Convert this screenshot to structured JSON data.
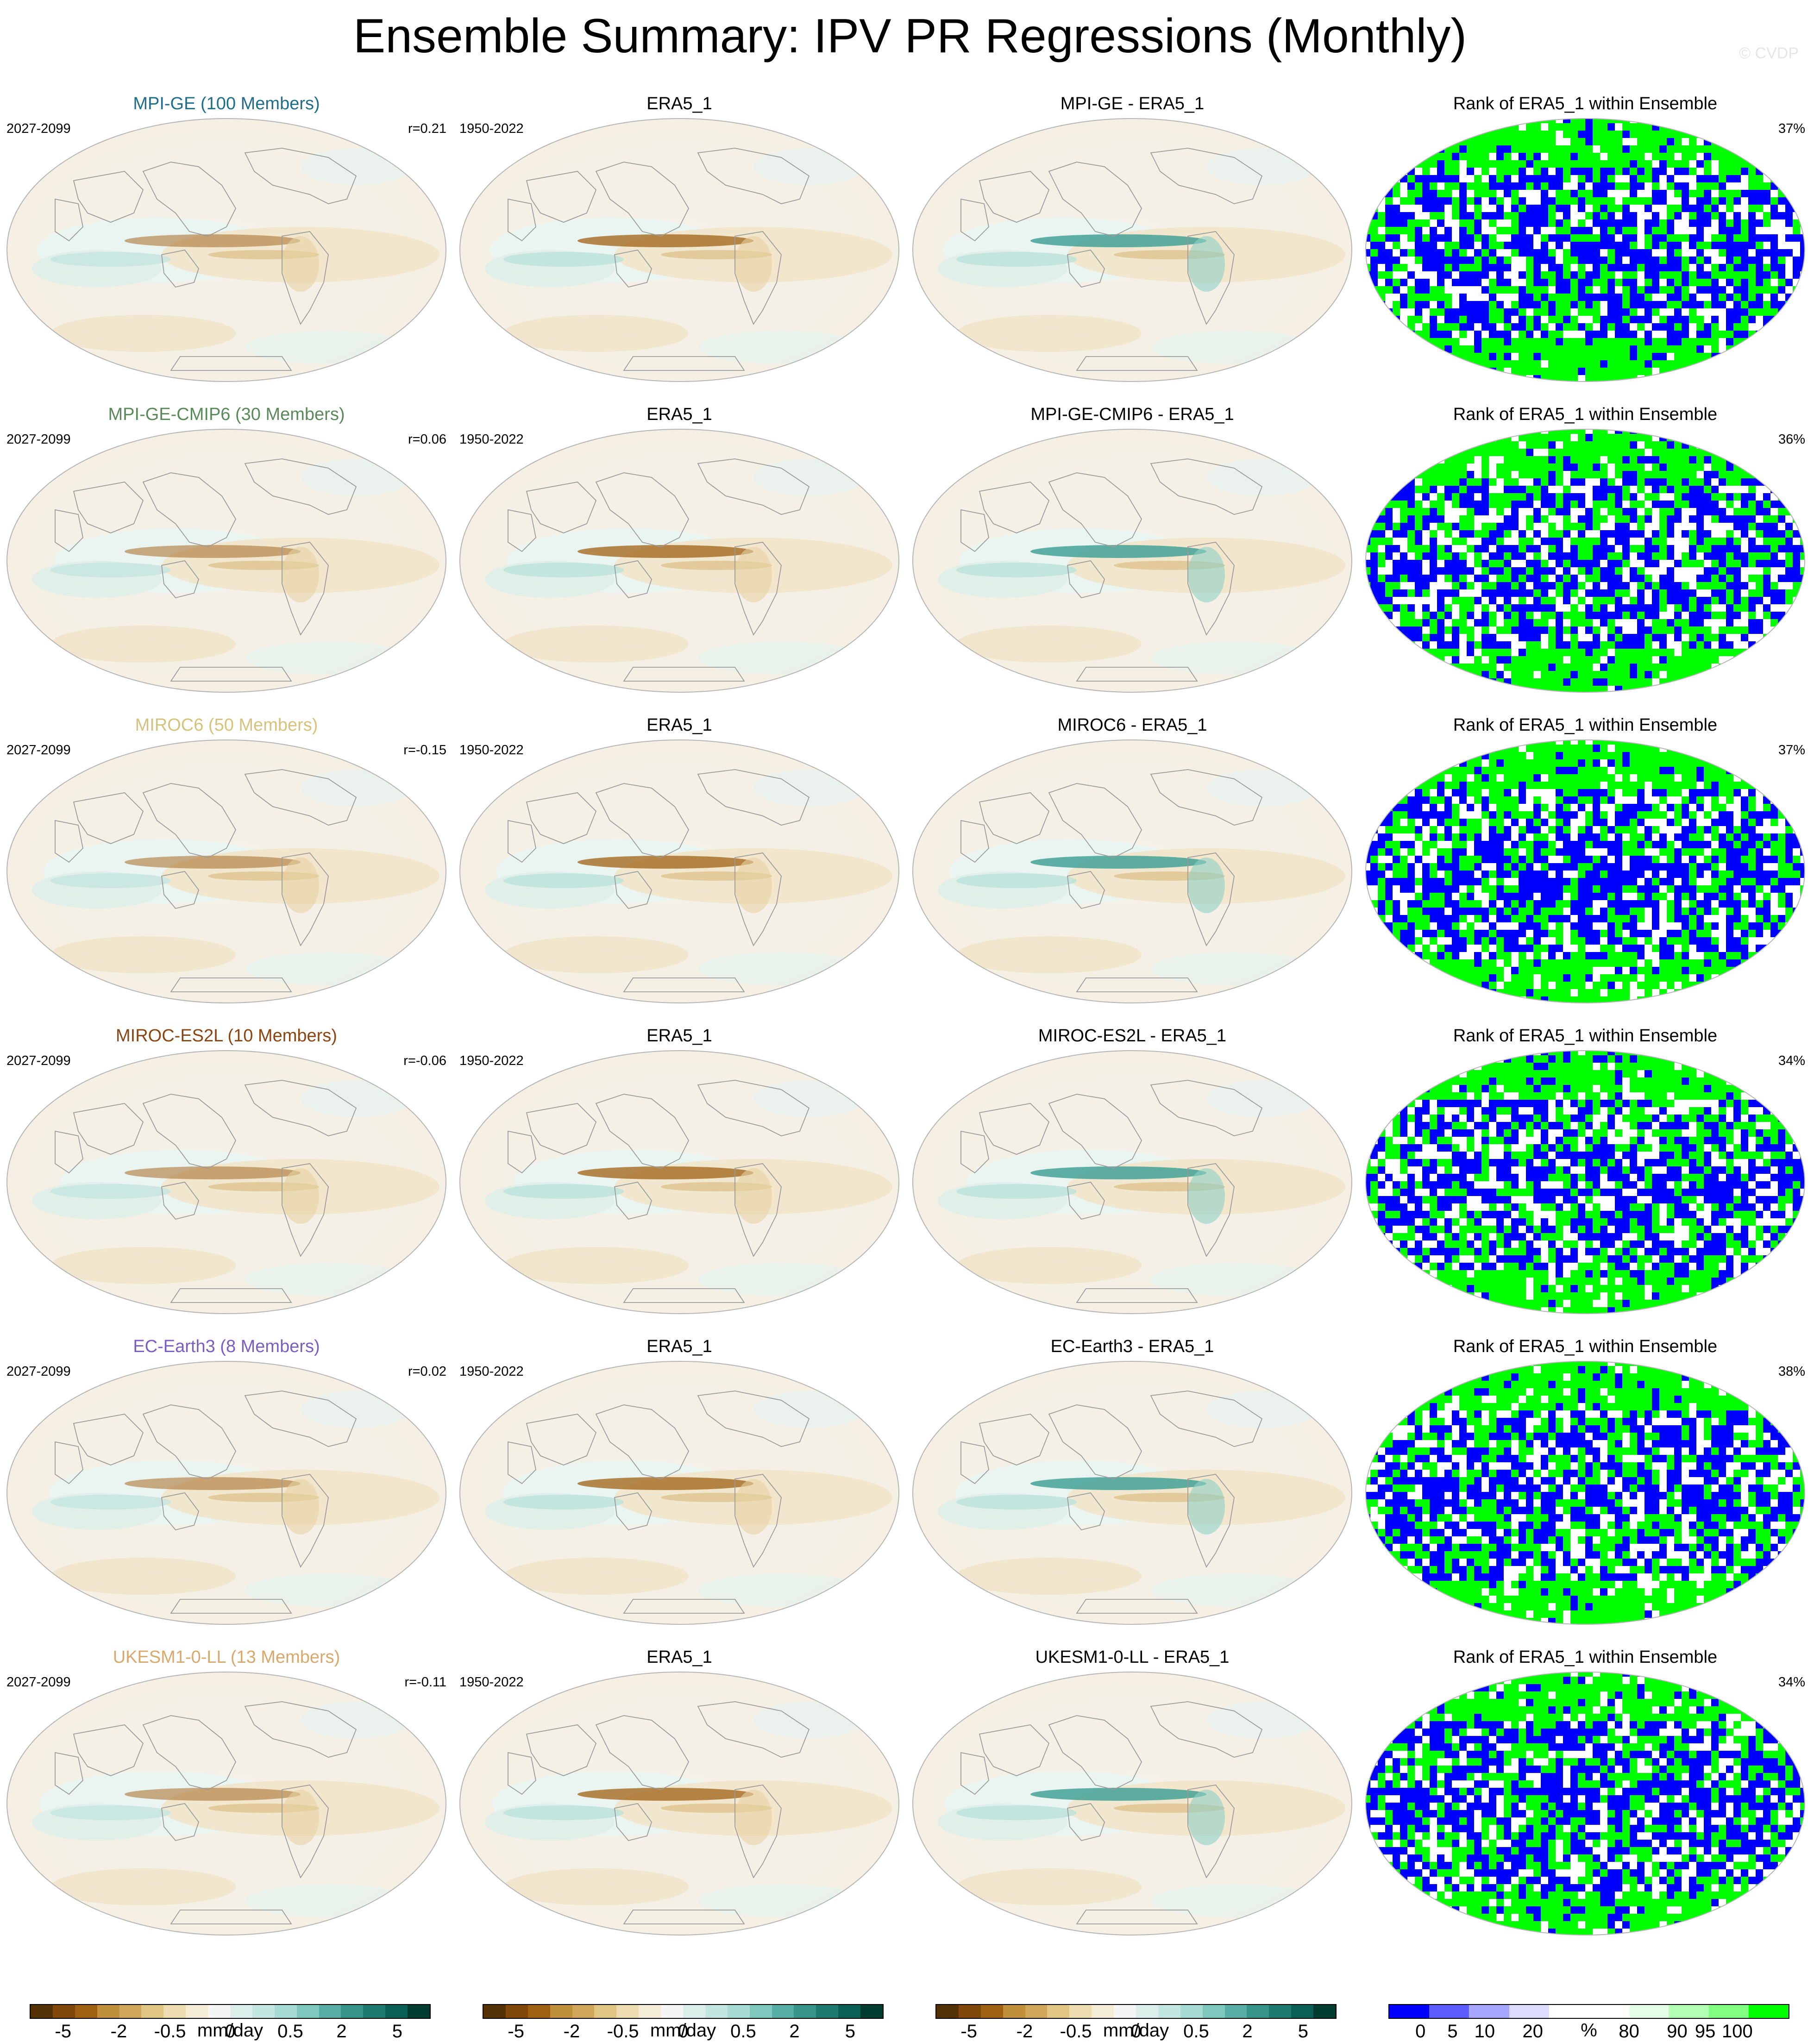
{
  "title": "Ensemble Summary: IPV PR Regressions (Monthly)",
  "watermark": "© CVDP",
  "rows": [
    {
      "model": "MPI-GE (100 Members)",
      "model_color": "#1f6e8c",
      "model_period": "2027-2099",
      "r": "r=0.21",
      "obs": "ERA5_1",
      "obs_period": "1950-2022",
      "diff": "MPI-GE - ERA5_1",
      "rank_title": "Rank of ERA5_1 within Ensemble",
      "rank_pct": "37%"
    },
    {
      "model": "MPI-GE-CMIP6 (30 Members)",
      "model_color": "#5a8a5a",
      "model_period": "2027-2099",
      "r": "r=0.06",
      "obs": "ERA5_1",
      "obs_period": "1950-2022",
      "diff": "MPI-GE-CMIP6 - ERA5_1",
      "rank_title": "Rank of ERA5_1 within Ensemble",
      "rank_pct": "36%"
    },
    {
      "model": "MIROC6 (50 Members)",
      "model_color": "#d6c27a",
      "model_period": "2027-2099",
      "r": "r=-0.15",
      "obs": "ERA5_1",
      "obs_period": "1950-2022",
      "diff": "MIROC6 - ERA5_1",
      "rank_title": "Rank of ERA5_1 within Ensemble",
      "rank_pct": "37%"
    },
    {
      "model": "MIROC-ES2L (10 Members)",
      "model_color": "#8b4513",
      "model_period": "2027-2099",
      "r": "r=-0.06",
      "obs": "ERA5_1",
      "obs_period": "1950-2022",
      "diff": "MIROC-ES2L - ERA5_1",
      "rank_title": "Rank of ERA5_1 within Ensemble",
      "rank_pct": "34%"
    },
    {
      "model": "EC-Earth3 (8 Members)",
      "model_color": "#7b5ec4",
      "model_period": "2027-2099",
      "r": "r=0.02",
      "obs": "ERA5_1",
      "obs_period": "1950-2022",
      "diff": "EC-Earth3 - ERA5_1",
      "rank_title": "Rank of ERA5_1 within Ensemble",
      "rank_pct": "38%"
    },
    {
      "model": "UKESM1-0-LL (13 Members)",
      "model_color": "#d9a86c",
      "model_period": "2027-2099",
      "r": "r=-0.11",
      "obs": "ERA5_1",
      "obs_period": "1950-2022",
      "diff": "UKESM1-0-LL - ERA5_1",
      "rank_title": "Rank of ERA5_1 within Ensemble",
      "rank_pct": "34%"
    }
  ],
  "colorbars": {
    "precip_colors": [
      "#543005",
      "#7f470a",
      "#9e6112",
      "#bf8f3a",
      "#d0a65a",
      "#e0c585",
      "#ecdcaf",
      "#f5ecd6",
      "#f5f5f5",
      "#dbeeea",
      "#c2e6e0",
      "#a5dbd3",
      "#7fc8be",
      "#57aea6",
      "#36948b",
      "#1d7a71",
      "#0a5f55",
      "#003c30"
    ],
    "precip_ticks": [
      "-5",
      "-2",
      "-0.5",
      "0",
      "0.5",
      "2",
      "5"
    ],
    "precip_unit": "mm/day",
    "rank_colors": [
      "#0000ff",
      "#5c5cff",
      "#a6a6ff",
      "#dcdcff",
      "#ffffff",
      "#ffffff",
      "#e6ffe6",
      "#b3ffb3",
      "#80ff80",
      "#00ff00"
    ],
    "rank_ticks": [
      "0",
      "5",
      "10",
      "20",
      "80",
      "90",
      "95",
      "100"
    ],
    "rank_unit": "%"
  }
}
